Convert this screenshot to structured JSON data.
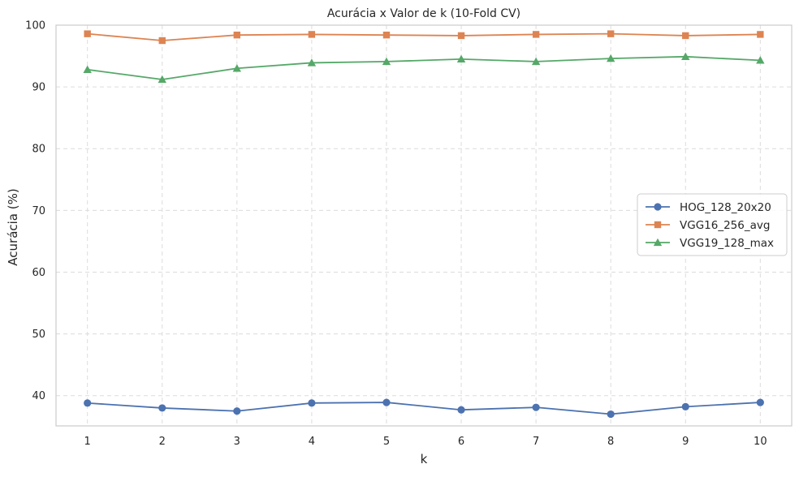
{
  "chart_data": {
    "type": "line",
    "title": "Acurácia x Valor de k (10-Fold CV)",
    "xlabel": "k",
    "ylabel": "Acurácia (%)",
    "x": [
      1,
      2,
      3,
      4,
      5,
      6,
      7,
      8,
      9,
      10
    ],
    "xticks": [
      "1",
      "2",
      "3",
      "4",
      "5",
      "6",
      "7",
      "8",
      "9",
      "10"
    ],
    "xlim": [
      0.58,
      10.42
    ],
    "ylim": [
      35.1,
      100
    ],
    "yticks": [
      40,
      50,
      60,
      70,
      80,
      90,
      100
    ],
    "grid": true,
    "grid_style": "dashed",
    "legend_position": "center-right",
    "series": [
      {
        "name": "HOG_128_20x20",
        "color": "#4c72b0",
        "marker": "circle",
        "values": [
          38.8,
          38.0,
          37.5,
          38.8,
          38.9,
          37.7,
          38.1,
          37.0,
          38.2,
          38.9
        ]
      },
      {
        "name": "VGG16_256_avg",
        "color": "#dd8452",
        "marker": "square",
        "values": [
          98.6,
          97.5,
          98.4,
          98.5,
          98.4,
          98.3,
          98.5,
          98.6,
          98.3,
          98.5
        ]
      },
      {
        "name": "VGG19_128_max",
        "color": "#55a868",
        "marker": "triangle",
        "values": [
          92.8,
          91.2,
          93.0,
          93.9,
          94.1,
          94.5,
          94.1,
          94.6,
          94.9,
          94.3
        ]
      }
    ]
  }
}
